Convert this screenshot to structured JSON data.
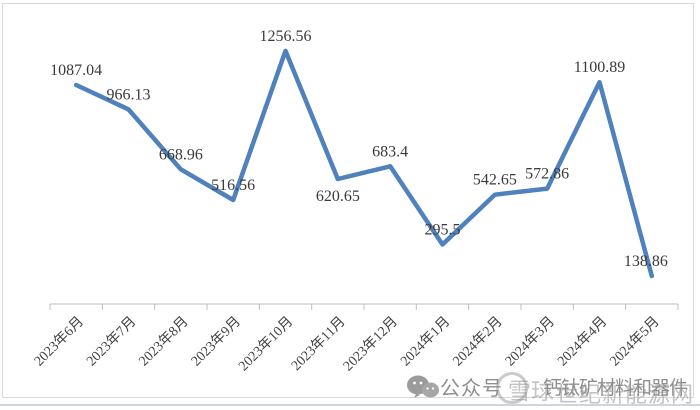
{
  "chart_data": {
    "type": "line",
    "title": "",
    "xlabel": "",
    "ylabel": "",
    "categories": [
      "2023年6月",
      "2023年7月",
      "2023年8月",
      "2023年9月",
      "2023年10月",
      "2023年11月",
      "2023年12月",
      "2024年1月",
      "2024年2月",
      "2024年3月",
      "2024年4月",
      "2024年5月"
    ],
    "values": [
      1087.04,
      966.13,
      668.96,
      516.56,
      1256.56,
      620.65,
      683.4,
      295.5,
      542.65,
      572.86,
      1100.89,
      138.86
    ],
    "labels": [
      "1087.04",
      "966.13",
      "668.96",
      "516.56",
      "1256.56",
      "620.65",
      "683.4",
      "295.5",
      "542.65",
      "572.86",
      "1100.89",
      "138.86"
    ],
    "ylim": [
      0,
      1400
    ],
    "grid": false,
    "legend": "none",
    "line_color": "#4F81BD",
    "label_color": "#3a3a3a",
    "axis_color": "#bfbfbf",
    "label_placement": [
      "above",
      "above",
      "above",
      "above",
      "above",
      "below",
      "above",
      "above",
      "above",
      "above",
      "above",
      "above"
    ],
    "label_dx": [
      0,
      0,
      0,
      0,
      0,
      0,
      0,
      0,
      0,
      0,
      0,
      -6
    ]
  },
  "watermark": {
    "wechat_icon": "wechat-icon",
    "prefix": "公众号",
    "overlay_text": "雪球",
    "account": "钙钛矿材料和器件",
    "site": "世纪新能源网"
  }
}
